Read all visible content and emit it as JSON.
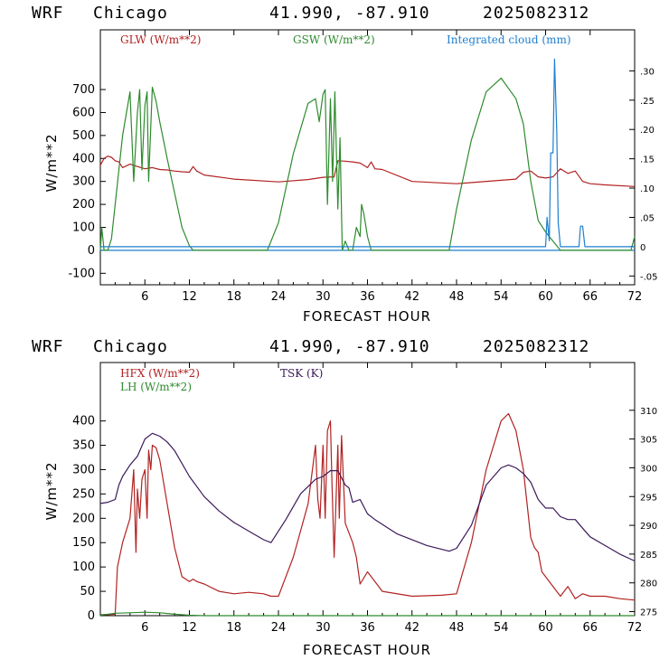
{
  "header": {
    "model": "WRF",
    "city": "Chicago",
    "coords": "41.990, -87.910",
    "run": "2025082312"
  },
  "chart_data": [
    {
      "type": "line",
      "xlabel": "FORECAST HOUR",
      "ylabel": "W/m**2",
      "xlim": [
        0,
        72
      ],
      "ylim": [
        -150,
        960
      ],
      "xticks": [
        "6",
        "12",
        "18",
        "24",
        "30",
        "36",
        "42",
        "48",
        "54",
        "60",
        "66",
        "72"
      ],
      "yticks": [
        "-100",
        "0",
        "100",
        "200",
        "300",
        "400",
        "500",
        "600",
        "700"
      ],
      "right_axis": {
        "ylim": [
          -0.065,
          0.37
        ],
        "ticks": [
          "-.05",
          "0",
          ".05",
          ".10",
          ".15",
          ".20",
          ".25",
          ".30"
        ]
      },
      "legend": [
        {
          "label": "GLW (W/m**2)",
          "color": "#b22222"
        },
        {
          "label": "GSW (W/m**2)",
          "color": "#2e8b2e"
        },
        {
          "label": "Integrated cloud (mm)",
          "color": "#1e7fd0"
        }
      ],
      "series": [
        {
          "name": "GLW (W/m**2)",
          "color": "#b22222",
          "axis": "left",
          "x": [
            0,
            0.5,
            1,
            1.5,
            2,
            2.5,
            3,
            4,
            5,
            6,
            7,
            8,
            9,
            10,
            11,
            12,
            12.5,
            13,
            14,
            18,
            24,
            28,
            30,
            31.5,
            32,
            33,
            34,
            35,
            36,
            36.5,
            37,
            38,
            42,
            48,
            54,
            56,
            57,
            58,
            59,
            60,
            61,
            62,
            63,
            64,
            65,
            66,
            68,
            72
          ],
          "y": [
            370,
            400,
            410,
            405,
            390,
            385,
            360,
            375,
            365,
            355,
            360,
            352,
            350,
            345,
            342,
            340,
            365,
            345,
            328,
            310,
            298,
            308,
            318,
            320,
            390,
            388,
            385,
            380,
            360,
            385,
            355,
            352,
            300,
            290,
            305,
            310,
            340,
            345,
            320,
            315,
            320,
            355,
            335,
            345,
            300,
            290,
            285,
            278
          ]
        },
        {
          "name": "GSW (W/m**2)",
          "color": "#2e8b2e",
          "axis": "left",
          "x": [
            0,
            0.2,
            0.5,
            1,
            1.5,
            2,
            3,
            4,
            4.5,
            5,
            5.3,
            5.6,
            6,
            6.3,
            6.5,
            7,
            7.5,
            8,
            9,
            10,
            11,
            12,
            12.5,
            22.5,
            24,
            26,
            28,
            29,
            29.5,
            30,
            30.3,
            30.6,
            31,
            31.3,
            31.6,
            32,
            32.3,
            32.6,
            33,
            33.5,
            34,
            34.5,
            35,
            35.2,
            35.5,
            36,
            36.5,
            47,
            48,
            50,
            52,
            54,
            56,
            57,
            58,
            59,
            60,
            61,
            62,
            71.5,
            72
          ],
          "y": [
            0,
            100,
            0,
            0,
            50,
            200,
            500,
            690,
            300,
            600,
            700,
            350,
            630,
            690,
            300,
            710,
            650,
            560,
            400,
            250,
            100,
            20,
            0,
            0,
            120,
            420,
            640,
            660,
            560,
            680,
            700,
            200,
            660,
            300,
            690,
            180,
            490,
            0,
            40,
            0,
            0,
            100,
            60,
            200,
            160,
            60,
            0,
            0,
            180,
            480,
            690,
            750,
            660,
            550,
            300,
            130,
            80,
            40,
            0,
            0,
            60
          ]
        },
        {
          "name": "Integrated cloud (mm)",
          "color": "#1e7fd0",
          "axis": "right",
          "x": [
            0,
            59,
            60,
            60.2,
            60.5,
            60.7,
            61,
            61.2,
            61.5,
            61.7,
            62,
            62.3,
            63,
            64.5,
            64.7,
            65,
            65.3,
            72
          ],
          "y": [
            0,
            0,
            0,
            0.05,
            0.01,
            0.16,
            0.16,
            0.32,
            0.2,
            0.04,
            0,
            0,
            0,
            0,
            0.035,
            0.035,
            0,
            0
          ]
        }
      ]
    },
    {
      "type": "line",
      "xlabel": "FORECAST HOUR",
      "ylabel": "W/m**2",
      "xlim": [
        0,
        72
      ],
      "ylim": [
        0,
        520
      ],
      "xticks": [
        "6",
        "12",
        "18",
        "24",
        "30",
        "36",
        "42",
        "48",
        "54",
        "60",
        "66",
        "72"
      ],
      "yticks": [
        "0",
        "50",
        "100",
        "150",
        "200",
        "250",
        "300",
        "350",
        "400"
      ],
      "right_axis": {
        "ylim": [
          274.3,
          318.3
        ],
        "ticks": [
          "275",
          "280",
          "285",
          "290",
          "295",
          "300",
          "305",
          "310"
        ]
      },
      "legend": [
        {
          "label": "HFX (W/m**2)",
          "color": "#b22222"
        },
        {
          "label": "LH  (W/m**2)",
          "color": "#2e8b2e"
        },
        {
          "label": "TSK (K)",
          "color": "#3b1a5a"
        }
      ],
      "series": [
        {
          "name": "HFX (W/m**2)",
          "color": "#b22222",
          "axis": "left",
          "x": [
            0,
            1,
            2,
            2.3,
            3,
            4,
            4.5,
            4.8,
            5,
            5.3,
            5.6,
            6,
            6.3,
            6.5,
            6.8,
            7,
            7.5,
            8,
            9,
            10,
            11,
            12,
            12.5,
            13,
            14,
            16,
            18,
            20,
            22,
            23,
            24,
            26,
            28,
            29,
            29.3,
            29.6,
            30,
            30.3,
            30.6,
            31,
            31.2,
            31.5,
            32,
            32.2,
            32.5,
            33,
            34,
            34.5,
            35,
            36,
            37,
            38,
            42,
            46,
            48,
            50,
            52,
            54,
            55,
            56,
            57,
            58,
            58.5,
            59,
            59.5,
            60,
            61,
            62,
            63,
            64,
            65,
            66,
            68,
            70,
            72
          ],
          "y": [
            2,
            2,
            3,
            100,
            150,
            200,
            300,
            130,
            260,
            200,
            280,
            300,
            200,
            340,
            300,
            350,
            345,
            320,
            230,
            140,
            80,
            70,
            75,
            70,
            65,
            50,
            45,
            48,
            45,
            40,
            40,
            120,
            230,
            350,
            240,
            200,
            350,
            200,
            380,
            400,
            280,
            120,
            350,
            200,
            370,
            190,
            150,
            120,
            65,
            90,
            70,
            50,
            40,
            42,
            45,
            150,
            300,
            400,
            415,
            380,
            300,
            160,
            140,
            130,
            90,
            80,
            60,
            40,
            60,
            35,
            45,
            40,
            40,
            35,
            32
          ]
        },
        {
          "name": "LH  (W/m**2)",
          "color": "#2e8b2e",
          "axis": "left",
          "x": [
            0,
            2,
            4,
            6,
            8,
            10,
            12,
            14,
            72
          ],
          "y": [
            1,
            5,
            6,
            7,
            6,
            3,
            1,
            0,
            0
          ]
        },
        {
          "name": "TSK (K)",
          "color": "#3b1a5a",
          "axis": "right",
          "x": [
            0,
            1,
            2,
            2.5,
            3,
            4,
            5,
            6,
            7,
            8,
            9,
            10,
            12,
            14,
            16,
            18,
            20,
            22,
            23,
            25,
            27,
            29,
            30,
            31,
            32,
            33,
            33.5,
            34,
            35,
            36,
            37,
            40,
            44,
            47,
            48,
            50,
            52,
            54,
            55,
            56,
            57,
            58,
            59,
            60,
            61,
            62,
            63,
            64,
            65,
            66,
            68,
            70,
            72
          ],
          "y": [
            293.8,
            294,
            294.5,
            297,
            298.5,
            300.5,
            302,
            305,
            306,
            305.5,
            304.5,
            303,
            298.5,
            295,
            292.5,
            290.5,
            289,
            287.5,
            287,
            291,
            295.5,
            298,
            298.5,
            299.5,
            299.5,
            297,
            296.5,
            294,
            294.5,
            292,
            291,
            288.5,
            286.5,
            285.5,
            286,
            290,
            297,
            300,
            300.5,
            300,
            299,
            297.5,
            294.5,
            293,
            293,
            291.5,
            291,
            291,
            289.5,
            288,
            286.5,
            285,
            283.8
          ]
        }
      ]
    }
  ]
}
